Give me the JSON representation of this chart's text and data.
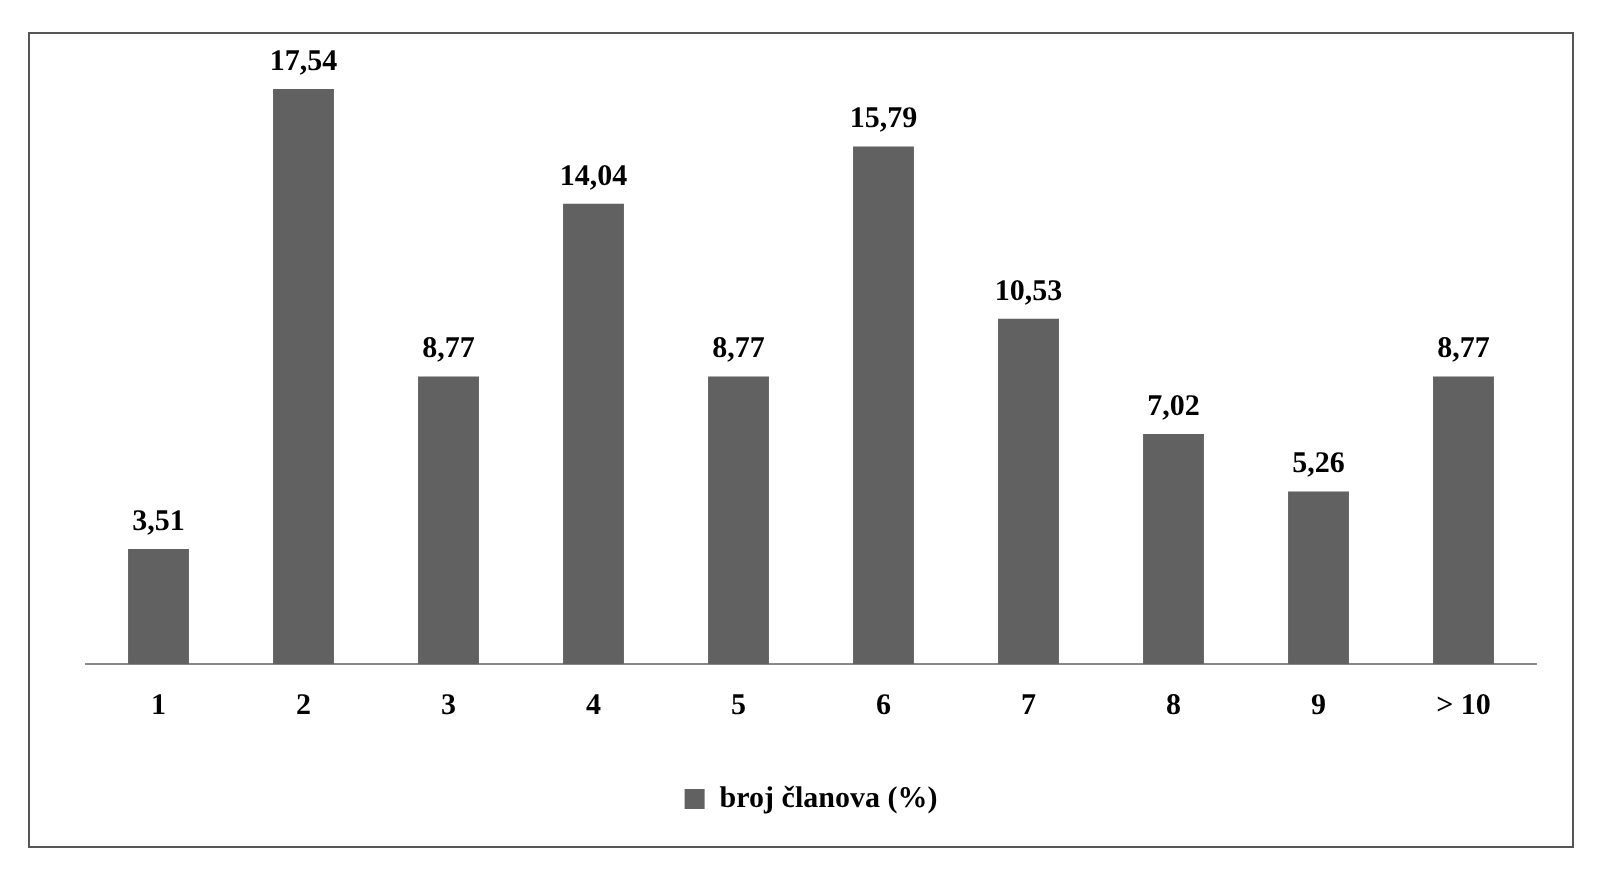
{
  "chart_data": {
    "type": "bar",
    "categories": [
      "1",
      "2",
      "3",
      "4",
      "5",
      "6",
      "7",
      "8",
      "9",
      "> 10"
    ],
    "series": [
      {
        "name": "broj članova (%)",
        "color": "#616161",
        "values": [
          3.51,
          17.54,
          8.77,
          14.04,
          8.77,
          15.79,
          10.53,
          7.02,
          5.26,
          8.77
        ],
        "value_labels": [
          "3,51",
          "17,54",
          "8,77",
          "14,04",
          "8,77",
          "15,79",
          "10,53",
          "7,02",
          "5,26",
          "8,77"
        ]
      }
    ],
    "legend": "bottom",
    "grid": false,
    "tick_labels": "x"
  }
}
